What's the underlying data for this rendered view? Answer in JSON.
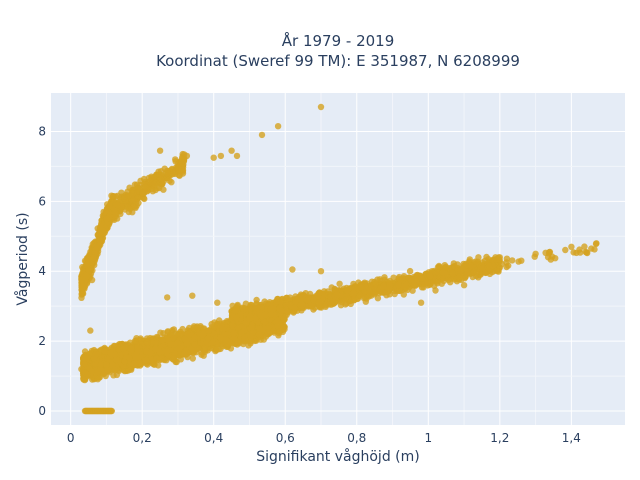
{
  "chart_data": {
    "type": "scatter",
    "title_line1": "År 1979 - 2019",
    "title_line2": "Koordinat (Sweref 99 TM): E 351987, N 6208999",
    "xlabel": "Signifikant våghöjd (m)",
    "ylabel": "Vågperiod (s)",
    "xlim": [
      -0.055,
      1.55
    ],
    "ylim": [
      -0.4,
      9.1
    ],
    "x_ticks": [
      0,
      0.2,
      0.4,
      0.6,
      0.8,
      1,
      1.2,
      1.4
    ],
    "x_tick_labels": [
      "0",
      "0,2",
      "0,4",
      "0,6",
      "0,8",
      "1",
      "1,2",
      "1,4"
    ],
    "y_ticks": [
      0,
      2,
      4,
      6,
      8
    ],
    "y_tick_labels": [
      "0",
      "2",
      "4",
      "6",
      "8"
    ],
    "grid": true,
    "background_color": "#e5ecf6",
    "marker_color": "#d4a321",
    "clusters": [
      {
        "kind": "zero_line",
        "x0": 0.04,
        "x1": 0.115,
        "y": 0,
        "n": 40
      },
      {
        "kind": "band",
        "x0": 0.035,
        "x1": 0.6,
        "y_at_x0": 1.25,
        "y_at_x1": 2.6,
        "spread": 0.55,
        "n": 2600
      },
      {
        "kind": "band",
        "x0": 0.45,
        "x1": 1.2,
        "y_at_x0": 2.7,
        "y_at_x1": 4.2,
        "spread": 0.35,
        "n": 1400
      },
      {
        "kind": "band",
        "x0": 1.0,
        "x1": 1.47,
        "y_at_x0": 3.9,
        "y_at_x1": 4.7,
        "spread": 0.25,
        "n": 60
      },
      {
        "kind": "band",
        "x0": 0.03,
        "x1": 0.12,
        "y_at_x0": 3.6,
        "y_at_x1": 6.0,
        "spread": 0.5,
        "n": 500
      },
      {
        "kind": "band",
        "x0": 0.1,
        "x1": 0.32,
        "y_at_x0": 5.6,
        "y_at_x1": 7.1,
        "spread": 0.45,
        "n": 300
      }
    ],
    "points": [
      {
        "x": 0.7,
        "y": 8.7
      },
      {
        "x": 0.58,
        "y": 8.15
      },
      {
        "x": 0.535,
        "y": 7.9
      },
      {
        "x": 0.45,
        "y": 7.45
      },
      {
        "x": 0.465,
        "y": 7.3
      },
      {
        "x": 0.42,
        "y": 7.3
      },
      {
        "x": 0.4,
        "y": 7.25
      },
      {
        "x": 0.25,
        "y": 7.45
      },
      {
        "x": 0.325,
        "y": 7.3
      },
      {
        "x": 0.06,
        "y": 3.75
      },
      {
        "x": 0.03,
        "y": 1.2
      },
      {
        "x": 0.04,
        "y": 1.5
      },
      {
        "x": 0.055,
        "y": 2.3
      },
      {
        "x": 0.7,
        "y": 4.0
      },
      {
        "x": 0.62,
        "y": 4.05
      },
      {
        "x": 1.3,
        "y": 4.5
      },
      {
        "x": 1.4,
        "y": 4.7
      },
      {
        "x": 1.44,
        "y": 4.55
      },
      {
        "x": 1.47,
        "y": 4.8
      },
      {
        "x": 1.34,
        "y": 4.55
      },
      {
        "x": 1.26,
        "y": 4.3
      },
      {
        "x": 1.1,
        "y": 3.6
      },
      {
        "x": 1.02,
        "y": 3.45
      },
      {
        "x": 0.98,
        "y": 3.1
      },
      {
        "x": 1.03,
        "y": 4.15
      },
      {
        "x": 1.14,
        "y": 4.4
      },
      {
        "x": 1.17,
        "y": 4.15
      },
      {
        "x": 1.2,
        "y": 4.4
      },
      {
        "x": 0.34,
        "y": 3.3
      },
      {
        "x": 0.27,
        "y": 3.25
      },
      {
        "x": 0.41,
        "y": 3.1
      }
    ]
  }
}
